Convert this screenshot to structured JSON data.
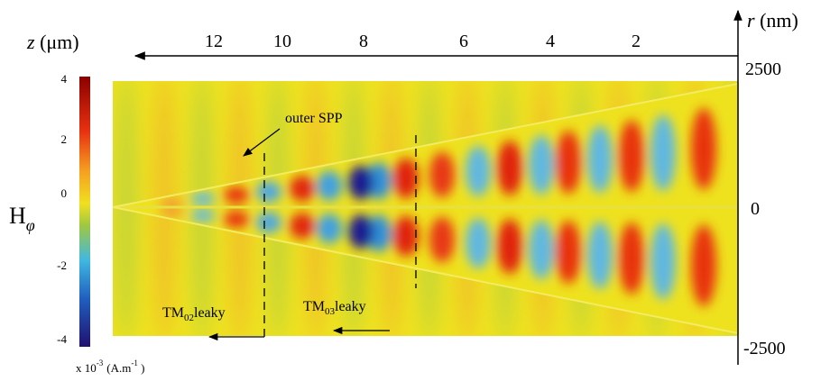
{
  "figure": {
    "top_axis": {
      "symbol": "z",
      "unit": " (μm)",
      "ticks": [
        "12",
        "10",
        "8",
        "6",
        "4",
        "2"
      ]
    },
    "right_axis": {
      "symbol": "r",
      "unit": " (nm)",
      "ticks": [
        "2500",
        "0",
        "-2500"
      ]
    },
    "colorbar": {
      "symbol": "H",
      "subscript": "φ",
      "ticks": [
        "4",
        "2",
        "0",
        "-2",
        "-4"
      ],
      "scale": {
        "prefix": "x 10",
        "exponent": "-3",
        "unit": "(A.m",
        "unit_exponent": "-1",
        "close": " )"
      }
    },
    "annotations": {
      "outer_spp": "outer SPP",
      "tm02": {
        "main": "TM",
        "sub": "02",
        "rest": "leaky"
      },
      "tm03": {
        "main": "TM",
        "sub": "03",
        "rest": "leaky"
      }
    }
  }
}
